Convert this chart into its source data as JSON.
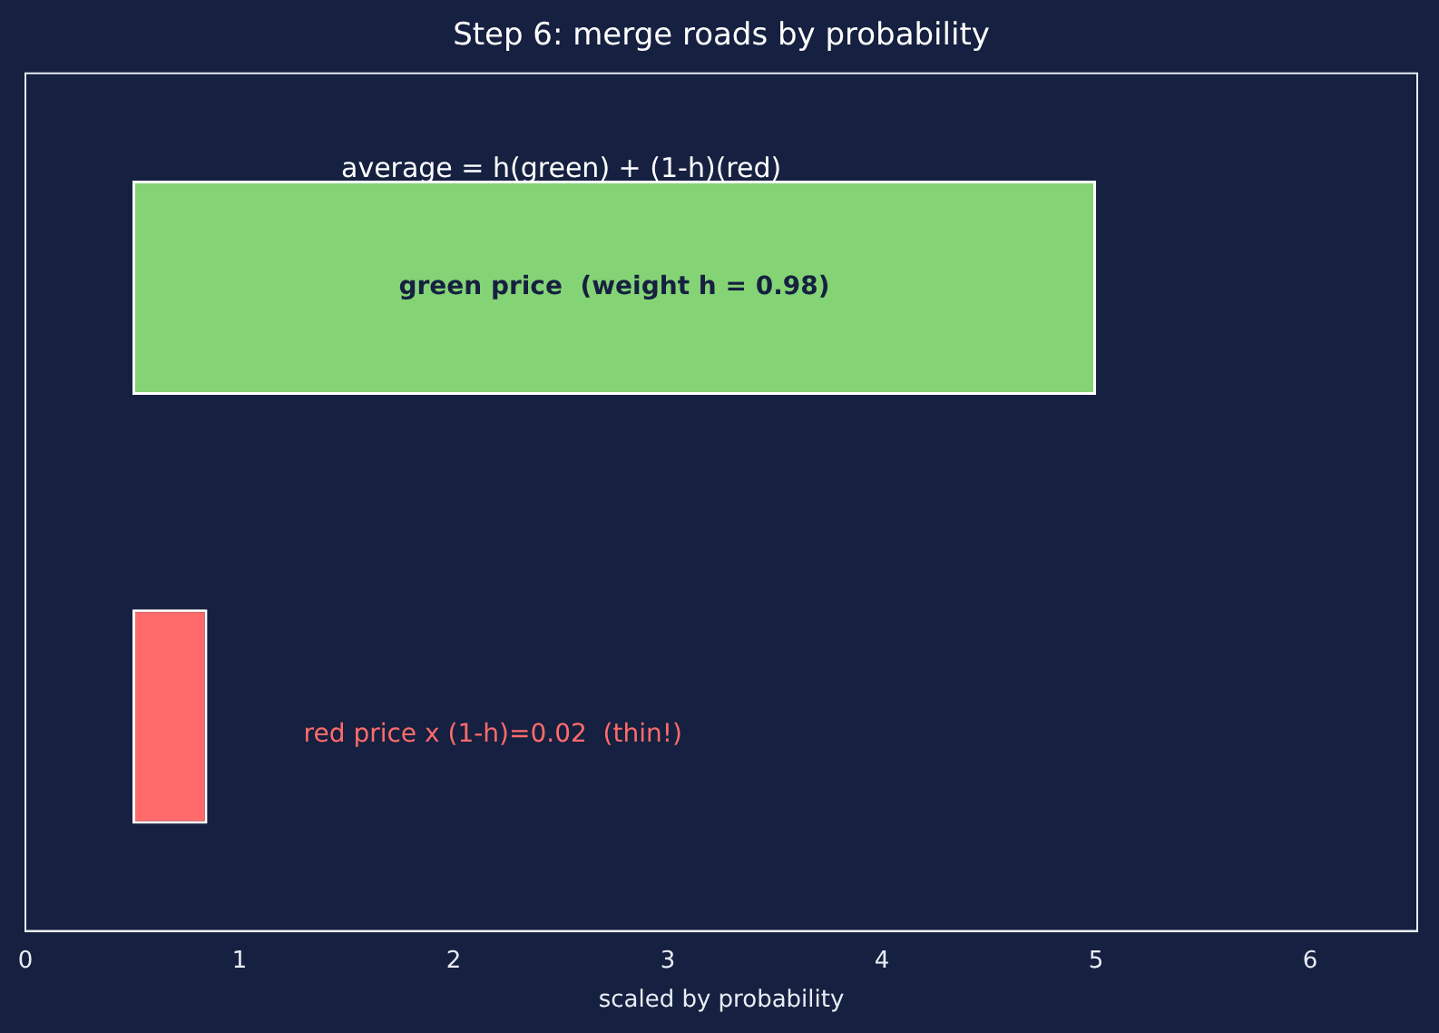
{
  "chart_data": {
    "type": "bar",
    "orientation": "horizontal",
    "title": "Step 6: merge roads by probability",
    "xlabel": "scaled by probability",
    "categories": [
      null,
      null
    ],
    "values": [
      4.5,
      0.35
    ],
    "base": [
      0.5,
      0.5
    ],
    "colors": [
      "#84d475",
      "#ff6b6b"
    ],
    "xlim": [
      0,
      6.5
    ],
    "xticks": [
      0,
      1,
      2,
      3,
      4,
      5,
      6
    ],
    "tick_labels": "x",
    "grid": false,
    "legend": false,
    "annotations": [
      "average = h(green) + (1-h)(red)",
      "green price  (weight h = 0.98)",
      "red price x (1-h)=0.02  (thin!)"
    ]
  }
}
